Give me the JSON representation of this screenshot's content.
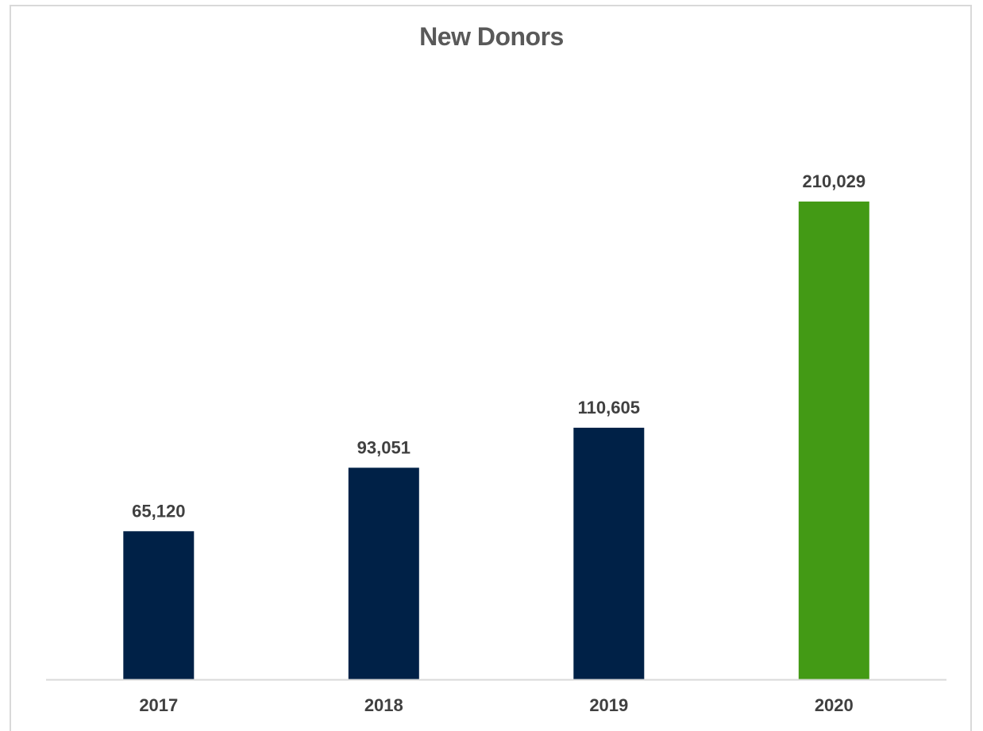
{
  "chart_data": {
    "type": "bar",
    "title": "New Donors",
    "categories": [
      "2017",
      "2018",
      "2019",
      "2020"
    ],
    "values": [
      65120,
      93051,
      110605,
      210029
    ],
    "data_labels": [
      "65,120",
      "93,051",
      "110,605",
      "210,029"
    ],
    "colors": [
      "#002147",
      "#002147",
      "#002147",
      "#439a15"
    ],
    "xlabel": "",
    "ylabel": "",
    "ylim": [
      0,
      270000
    ],
    "grid": false,
    "legend": "none"
  }
}
